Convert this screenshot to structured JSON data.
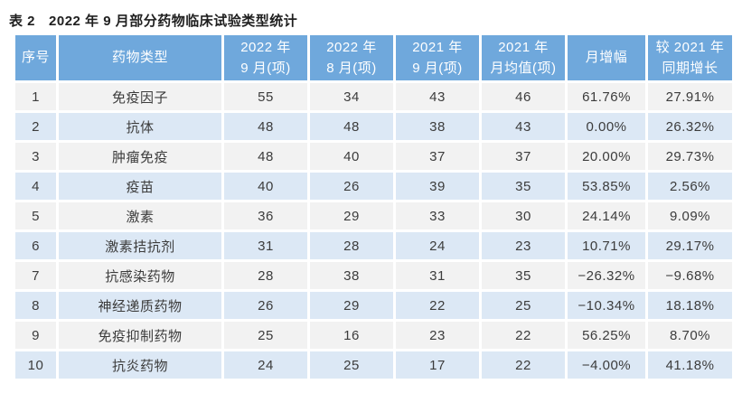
{
  "title": {
    "prefix": "表 2",
    "text": "2022 年 9 月部分药物临床试验类型统计"
  },
  "colors": {
    "header_background": "#6fa8dc",
    "header_text": "#ffffff",
    "row_odd_background": "#f2f2f2",
    "row_even_background": "#dce8f5",
    "body_text": "#3c3c3c",
    "caption_text": "#1f1f1f"
  },
  "table": {
    "columns": [
      {
        "id": "index",
        "label": "序号"
      },
      {
        "id": "drug-type",
        "label": "药物类型"
      },
      {
        "id": "sep-2022",
        "label": "2022 年\n9 月(项)"
      },
      {
        "id": "aug-2022",
        "label": "2022 年\n8 月(项)"
      },
      {
        "id": "sep-2021",
        "label": "2021 年\n9 月(项)"
      },
      {
        "id": "avg-2021",
        "label": "2021 年\n月均值(项)"
      },
      {
        "id": "mom-growth",
        "label": "月增幅"
      },
      {
        "id": "yoy-growth",
        "label": "较 2021 年\n同期增长"
      }
    ],
    "rows": [
      [
        "1",
        "免疫因子",
        "55",
        "34",
        "43",
        "46",
        "61.76%",
        "27.91%"
      ],
      [
        "2",
        "抗体",
        "48",
        "48",
        "38",
        "43",
        "0.00%",
        "26.32%"
      ],
      [
        "3",
        "肿瘤免疫",
        "48",
        "40",
        "37",
        "37",
        "20.00%",
        "29.73%"
      ],
      [
        "4",
        "疫苗",
        "40",
        "26",
        "39",
        "35",
        "53.85%",
        "2.56%"
      ],
      [
        "5",
        "激素",
        "36",
        "29",
        "33",
        "30",
        "24.14%",
        "9.09%"
      ],
      [
        "6",
        "激素拮抗剂",
        "31",
        "28",
        "24",
        "23",
        "10.71%",
        "29.17%"
      ],
      [
        "7",
        "抗感染药物",
        "28",
        "38",
        "31",
        "35",
        "−26.32%",
        "−9.68%"
      ],
      [
        "8",
        "神经递质药物",
        "26",
        "29",
        "22",
        "25",
        "−10.34%",
        "18.18%"
      ],
      [
        "9",
        "免疫抑制药物",
        "25",
        "16",
        "23",
        "22",
        "56.25%",
        "8.70%"
      ],
      [
        "10",
        "抗炎药物",
        "24",
        "25",
        "17",
        "22",
        "−4.00%",
        "41.18%"
      ]
    ]
  },
  "chart_data": {
    "type": "table",
    "title": "表 2 2022 年 9 月部分药物临床试验类型统计",
    "columns": [
      "序号",
      "药物类型",
      "2022 年 9 月(项)",
      "2022 年 8 月(项)",
      "2021 年 9 月(项)",
      "2021 年 月均值(项)",
      "月增幅",
      "较 2021 年 同期增长"
    ],
    "categories": [
      "免疫因子",
      "抗体",
      "肿瘤免疫",
      "疫苗",
      "激素",
      "激素拮抗剂",
      "抗感染药物",
      "神经递质药物",
      "免疫抑制药物",
      "抗炎药物"
    ],
    "series": [
      {
        "name": "2022 年 9 月(项)",
        "values": [
          55,
          48,
          48,
          40,
          36,
          31,
          28,
          26,
          25,
          24
        ]
      },
      {
        "name": "2022 年 8 月(项)",
        "values": [
          34,
          48,
          40,
          26,
          29,
          28,
          38,
          29,
          16,
          25
        ]
      },
      {
        "name": "2021 年 9 月(项)",
        "values": [
          43,
          38,
          37,
          39,
          33,
          24,
          31,
          22,
          23,
          17
        ]
      },
      {
        "name": "2021 年 月均值(项)",
        "values": [
          46,
          43,
          37,
          35,
          30,
          23,
          35,
          25,
          22,
          22
        ]
      },
      {
        "name": "月增幅(%)",
        "values": [
          61.76,
          0.0,
          20.0,
          53.85,
          24.14,
          10.71,
          -26.32,
          -10.34,
          56.25,
          -4.0
        ]
      },
      {
        "name": "较 2021 年同期增长(%)",
        "values": [
          27.91,
          26.32,
          29.73,
          2.56,
          9.09,
          29.17,
          -9.68,
          18.18,
          8.7,
          41.18
        ]
      }
    ]
  }
}
